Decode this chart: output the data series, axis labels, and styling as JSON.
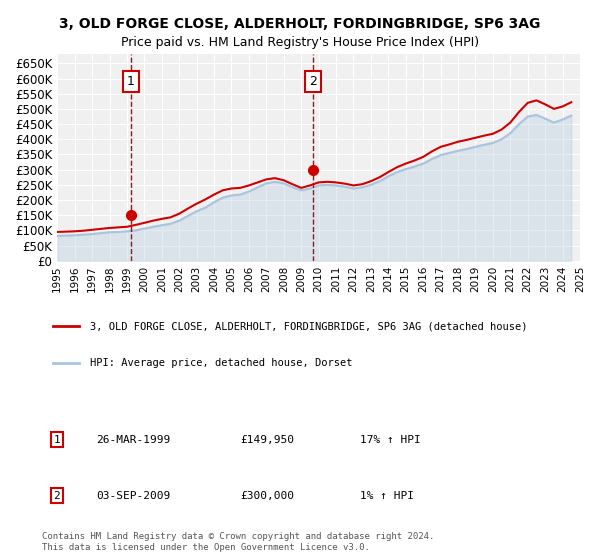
{
  "title": "3, OLD FORGE CLOSE, ALDERHOLT, FORDINGBRIDGE, SP6 3AG",
  "subtitle": "Price paid vs. HM Land Registry's House Price Index (HPI)",
  "xlabel": "",
  "ylabel": "",
  "ylim": [
    0,
    680000
  ],
  "yticks": [
    0,
    50000,
    100000,
    150000,
    200000,
    250000,
    300000,
    350000,
    400000,
    450000,
    500000,
    550000,
    600000,
    650000
  ],
  "ytick_labels": [
    "£0",
    "£50K",
    "£100K",
    "£150K",
    "£200K",
    "£250K",
    "£300K",
    "£350K",
    "£400K",
    "£450K",
    "£500K",
    "£550K",
    "£600K",
    "£650K"
  ],
  "background_color": "#ffffff",
  "plot_bg_color": "#f0f0f0",
  "grid_color": "#ffffff",
  "hpi_line_color": "#aac4dd",
  "price_line_color": "#cc0000",
  "sale1_x": 1999.23,
  "sale1_y": 149950,
  "sale1_label": "1",
  "sale2_x": 2009.67,
  "sale2_y": 300000,
  "sale2_label": "2",
  "legend_line1": "3, OLD FORGE CLOSE, ALDERHOLT, FORDINGBRIDGE, SP6 3AG (detached house)",
  "legend_line2": "HPI: Average price, detached house, Dorset",
  "table_row1": [
    "1",
    "26-MAR-1999",
    "£149,950",
    "17% ↑ HPI"
  ],
  "table_row2": [
    "2",
    "03-SEP-2009",
    "£300,000",
    "1% ↑ HPI"
  ],
  "footer": "Contains HM Land Registry data © Crown copyright and database right 2024.\nThis data is licensed under the Open Government Licence v3.0.",
  "hpi_data": {
    "years": [
      1995,
      1995.5,
      1996,
      1996.5,
      1997,
      1997.5,
      1998,
      1998.5,
      1999,
      1999.5,
      2000,
      2000.5,
      2001,
      2001.5,
      2002,
      2002.5,
      2003,
      2003.5,
      2004,
      2004.5,
      2005,
      2005.5,
      2006,
      2006.5,
      2007,
      2007.5,
      2008,
      2008.5,
      2009,
      2009.5,
      2010,
      2010.5,
      2011,
      2011.5,
      2012,
      2012.5,
      2013,
      2013.5,
      2014,
      2014.5,
      2015,
      2015.5,
      2016,
      2016.5,
      2017,
      2017.5,
      2018,
      2018.5,
      2019,
      2019.5,
      2020,
      2020.5,
      2021,
      2021.5,
      2022,
      2022.5,
      2023,
      2023.5,
      2024,
      2024.5
    ],
    "hpi_values": [
      82000,
      83000,
      84000,
      86000,
      88000,
      91000,
      94000,
      95000,
      97000,
      100000,
      106000,
      112000,
      117000,
      122000,
      132000,
      148000,
      163000,
      175000,
      193000,
      208000,
      215000,
      218000,
      228000,
      242000,
      255000,
      260000,
      255000,
      242000,
      232000,
      238000,
      248000,
      250000,
      248000,
      244000,
      238000,
      242000,
      250000,
      262000,
      278000,
      292000,
      302000,
      310000,
      320000,
      335000,
      348000,
      355000,
      362000,
      368000,
      375000,
      382000,
      388000,
      400000,
      420000,
      450000,
      475000,
      480000,
      468000,
      455000,
      465000,
      478000
    ],
    "price_values": [
      95000,
      96000,
      97000,
      99000,
      102000,
      105000,
      108000,
      110000,
      112000,
      118000,
      125000,
      132000,
      138000,
      143000,
      155000,
      172000,
      188000,
      202000,
      218000,
      232000,
      238000,
      240000,
      248000,
      258000,
      268000,
      272000,
      265000,
      252000,
      240000,
      248000,
      258000,
      260000,
      258000,
      254000,
      248000,
      252000,
      262000,
      275000,
      292000,
      308000,
      320000,
      330000,
      342000,
      360000,
      375000,
      383000,
      392000,
      398000,
      405000,
      412000,
      418000,
      432000,
      455000,
      490000,
      520000,
      528000,
      515000,
      500000,
      508000,
      522000
    ]
  },
  "vline1_x": 1999.23,
  "vline2_x": 2009.67,
  "xmin": 1995,
  "xmax": 2025
}
